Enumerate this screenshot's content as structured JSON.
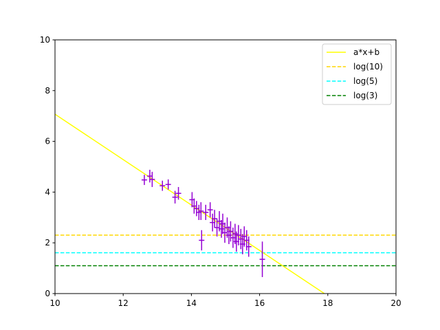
{
  "chart_data": {
    "type": "scatter",
    "title": "",
    "xlabel": "",
    "ylabel": "",
    "xlim": [
      10,
      20
    ],
    "ylim": [
      0,
      10
    ],
    "x_ticks": [
      "10",
      "12",
      "14",
      "16",
      "18",
      "20"
    ],
    "y_ticks": [
      "0",
      "2",
      "4",
      "6",
      "8",
      "10"
    ],
    "grid": false,
    "legend_position": "top-right",
    "fit_line": {
      "name": "a*x+b",
      "color": "#ffff00",
      "points": [
        [
          10,
          7.07
        ],
        [
          17.9,
          0
        ]
      ]
    },
    "hlines": [
      {
        "name": "log(10)",
        "y": 2.303,
        "color": "#ffd700",
        "style": "dashed"
      },
      {
        "name": "log(5)",
        "y": 1.609,
        "color": "#00ffff",
        "style": "dashed"
      },
      {
        "name": "log(3)",
        "y": 1.099,
        "color": "#008000",
        "style": "dashed"
      }
    ],
    "errorbar_color": "#9400d3",
    "points": [
      {
        "x": 12.62,
        "y": 4.48,
        "yerr": 0.2
      },
      {
        "x": 12.78,
        "y": 4.63,
        "yerr": 0.25
      },
      {
        "x": 12.85,
        "y": 4.5,
        "yerr": 0.3
      },
      {
        "x": 13.15,
        "y": 4.25,
        "yerr": 0.2
      },
      {
        "x": 13.32,
        "y": 4.3,
        "yerr": 0.2
      },
      {
        "x": 13.52,
        "y": 3.8,
        "yerr": 0.25
      },
      {
        "x": 13.62,
        "y": 3.95,
        "yerr": 0.25
      },
      {
        "x": 14.02,
        "y": 3.7,
        "yerr": 0.3
      },
      {
        "x": 14.08,
        "y": 3.45,
        "yerr": 0.3
      },
      {
        "x": 14.15,
        "y": 3.35,
        "yerr": 0.3
      },
      {
        "x": 14.22,
        "y": 3.2,
        "yerr": 0.3
      },
      {
        "x": 14.28,
        "y": 3.25,
        "yerr": 0.35
      },
      {
        "x": 14.3,
        "y": 2.1,
        "yerr": 0.4
      },
      {
        "x": 14.42,
        "y": 3.2,
        "yerr": 0.3
      },
      {
        "x": 14.55,
        "y": 3.3,
        "yerr": 0.3
      },
      {
        "x": 14.62,
        "y": 2.8,
        "yerr": 0.35
      },
      {
        "x": 14.68,
        "y": 2.95,
        "yerr": 0.35
      },
      {
        "x": 14.75,
        "y": 2.6,
        "yerr": 0.35
      },
      {
        "x": 14.82,
        "y": 2.85,
        "yerr": 0.4
      },
      {
        "x": 14.88,
        "y": 2.55,
        "yerr": 0.35
      },
      {
        "x": 14.92,
        "y": 2.75,
        "yerr": 0.4
      },
      {
        "x": 14.98,
        "y": 2.4,
        "yerr": 0.4
      },
      {
        "x": 15.05,
        "y": 2.6,
        "yerr": 0.4
      },
      {
        "x": 15.1,
        "y": 2.3,
        "yerr": 0.35
      },
      {
        "x": 15.15,
        "y": 2.45,
        "yerr": 0.4
      },
      {
        "x": 15.22,
        "y": 2.2,
        "yerr": 0.4
      },
      {
        "x": 15.28,
        "y": 2.35,
        "yerr": 0.4
      },
      {
        "x": 15.32,
        "y": 2.05,
        "yerr": 0.4
      },
      {
        "x": 15.38,
        "y": 2.3,
        "yerr": 0.4
      },
      {
        "x": 15.45,
        "y": 2.15,
        "yerr": 0.4
      },
      {
        "x": 15.5,
        "y": 1.95,
        "yerr": 0.4
      },
      {
        "x": 15.55,
        "y": 2.25,
        "yerr": 0.4
      },
      {
        "x": 15.62,
        "y": 2.1,
        "yerr": 0.4
      },
      {
        "x": 15.68,
        "y": 1.85,
        "yerr": 0.4
      },
      {
        "x": 16.08,
        "y": 1.35,
        "yerr": 0.7
      }
    ]
  }
}
